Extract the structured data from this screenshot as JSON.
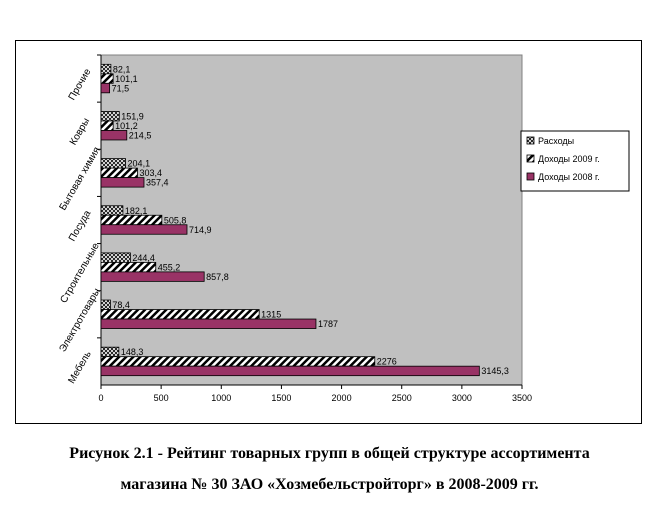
{
  "chart_data": {
    "type": "bar",
    "orientation": "horizontal",
    "categories": [
      "Мебель",
      "Электротовары",
      "Строительные",
      "Посуда",
      "Бытовая химия",
      "Ковры",
      "Прочие"
    ],
    "series": [
      {
        "name": "Доходы 2008 г.",
        "values": [
          3145.3,
          1787,
          857.8,
          714.9,
          357.4,
          214.5,
          71.5
        ],
        "labels": [
          "3145,3",
          "1787",
          "857,8",
          "714,9",
          "357,4",
          "214,5",
          "71,5"
        ],
        "color": "#993366",
        "pattern": "solid"
      },
      {
        "name": "Доходы 2009 г.",
        "values": [
          2276,
          1315,
          455.2,
          505.8,
          303.4,
          101.2,
          101.1
        ],
        "labels": [
          "2276",
          "1315",
          "455,2",
          "505,8",
          "303,4",
          "101,2",
          "101,1"
        ],
        "color": "#000000",
        "pattern": "diagonal-stripes"
      },
      {
        "name": "Расходы",
        "values": [
          148.3,
          78.4,
          244.4,
          182.1,
          204.1,
          151.9,
          82.1
        ],
        "labels": [
          "148,3",
          "78,4",
          "244,4",
          "182,1",
          "204,1",
          "151,9",
          "82,1"
        ],
        "color": "#808080",
        "pattern": "crosshatch"
      }
    ],
    "xlim": [
      0,
      3500
    ],
    "xticks": [
      0,
      500,
      1000,
      1500,
      2000,
      2500,
      3000,
      3500
    ],
    "legend": {
      "placement": "right",
      "order": [
        "Расходы",
        "Доходы 2009 г.",
        "Доходы 2008 г."
      ]
    },
    "plot_background": "#c0c0c0",
    "grid": false
  },
  "caption": {
    "line1": "Рисунок 2.1 - Рейтинг товарных групп в общей структуре ассортимента",
    "line2": "магазина № 30 ЗАО «Хозмебельстройторг» в 2008-2009 гг."
  }
}
